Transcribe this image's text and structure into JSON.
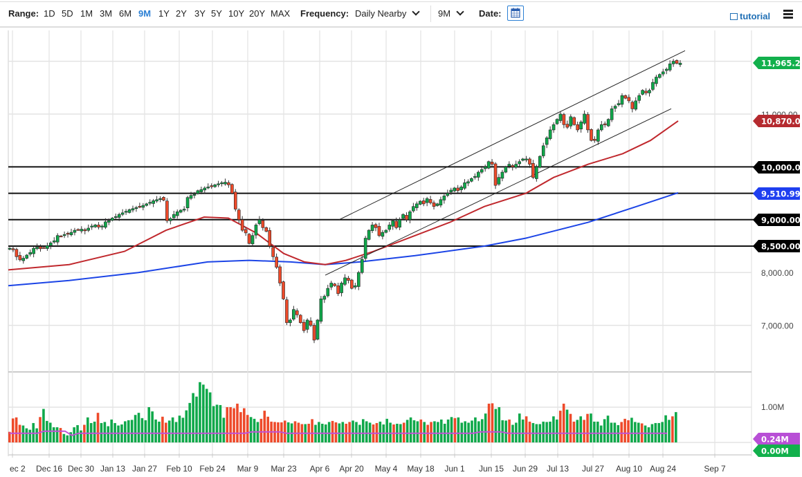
{
  "toolbar": {
    "range_label": "Range:",
    "ranges": [
      "1D",
      "5D",
      "1M",
      "3M",
      "6M",
      "9M",
      "1Y",
      "2Y",
      "3Y",
      "5Y",
      "10Y",
      "20Y",
      "MAX"
    ],
    "active_range": "9M",
    "frequency_label": "Frequency:",
    "frequency_value": "Daily Nearby",
    "period_value": "9M",
    "date_label": "Date:",
    "tutorial_label": "tutorial",
    "icons": {
      "calendar": "calendar-icon",
      "tutorial": "film-icon",
      "menu": "hamburger-menu-icon",
      "dropdown": "chevron-down-icon"
    }
  },
  "colors": {
    "up": "#0fa84a",
    "down": "#ee4a2a",
    "sma50": "#c0282d",
    "sma200": "#1b44e6",
    "volume_avg": "#c04fd6",
    "grid": "#e3e3e3",
    "last_price_tag": "#12b04c",
    "sma50_tag": "#b52a2f",
    "sma200_tag": "#1f3ff0",
    "level_tag": "#000000",
    "vol_avg_tag": "#b84fd6",
    "vol_zero_tag": "#12b04c"
  },
  "chart_data": {
    "type": "candlestick",
    "title": "",
    "xlabel": "",
    "ylabel": "",
    "ylim": [
      6500,
      12200
    ],
    "price_axis_ticks": [
      "11,000.00",
      "8,000.00",
      "7,000.00"
    ],
    "price_axis_tick_values": [
      11000,
      8000,
      7000
    ],
    "grid": true,
    "date_ticks": [
      "ec 2",
      "Dec 16",
      "Dec 30",
      "Jan 13",
      "Jan 27",
      "Feb 10",
      "Feb 24",
      "Mar 9",
      "Mar 23",
      "Apr 6",
      "Apr 20",
      "May 4",
      "May 18",
      "Jun 1",
      "Jun 15",
      "Jun 29",
      "Jul 13",
      "Jul 27",
      "Aug 10",
      "Aug 24",
      "Sep 7"
    ],
    "last_price": "11,965.25",
    "sma50_value": "10,870.07",
    "sma200_value": "9,510.99",
    "horizontal_levels": [
      {
        "value": 10000,
        "label": "10,000.00"
      },
      {
        "value": 9500,
        "label": "9,500.00"
      },
      {
        "value": 9000,
        "label": "9,000.00"
      },
      {
        "value": 8500,
        "label": "8,500.00"
      }
    ],
    "channel": {
      "upper": [
        [
          490,
          9000
        ],
        [
          990,
          12200
        ]
      ],
      "lower": [
        [
          470,
          7950
        ],
        [
          970,
          11100
        ]
      ]
    },
    "closes": [
      8460,
      8430,
      8300,
      8240,
      8270,
      8330,
      8380,
      8460,
      8480,
      8450,
      8470,
      8510,
      8560,
      8600,
      8700,
      8690,
      8720,
      8730,
      8760,
      8800,
      8810,
      8820,
      8790,
      8840,
      8880,
      8900,
      8860,
      8880,
      8960,
      8980,
      9030,
      9060,
      9100,
      9130,
      9160,
      9190,
      9210,
      9230,
      9250,
      9270,
      9300,
      9330,
      9360,
      9380,
      9400,
      9370,
      8980,
      9020,
      9100,
      9150,
      9180,
      9200,
      9420,
      9460,
      9480,
      9550,
      9570,
      9600,
      9620,
      9640,
      9660,
      9680,
      9700,
      9710,
      9660,
      9500,
      9200,
      9000,
      8800,
      8750,
      8550,
      8700,
      8900,
      9000,
      8850,
      8780,
      8500,
      8300,
      8100,
      7800,
      7500,
      7050,
      7100,
      7300,
      7200,
      7050,
      6900,
      7100,
      7000,
      6720,
      7100,
      7500,
      7550,
      7700,
      7800,
      7750,
      7600,
      7800,
      7900,
      7850,
      7700,
      7750,
      8000,
      8250,
      8650,
      8800,
      8900,
      8850,
      8700,
      8760,
      8800,
      8900,
      8980,
      8850,
      9000,
      9100,
      9000,
      9150,
      9250,
      9300,
      9350,
      9300,
      9400,
      9320,
      9250,
      9300,
      9380,
      9450,
      9500,
      9560,
      9600,
      9550,
      9620,
      9700,
      9720,
      9780,
      9820,
      9900,
      9950,
      10000,
      10100,
      10050,
      9650,
      9800,
      9900,
      10000,
      10050,
      10000,
      10050,
      10100,
      10150,
      10150,
      10050,
      9800,
      10000,
      10200,
      10400,
      10550,
      10700,
      10800,
      10900,
      11000,
      10800,
      10750,
      10950,
      10800,
      10700,
      10850,
      11000,
      10700,
      10500,
      10500,
      10700,
      10800,
      10800,
      10900,
      11100,
      11150,
      11200,
      11350,
      11300,
      11250,
      11100,
      11250,
      11350,
      11450,
      11400,
      11450,
      11600,
      11700,
      11750,
      11800,
      11850,
      11950,
      12000,
      11960,
      11965
    ],
    "sma50": {
      "start": [
        12,
        8050
      ],
      "points": [
        [
          12,
          8050
        ],
        [
          100,
          8150
        ],
        [
          180,
          8400
        ],
        [
          240,
          8800
        ],
        [
          295,
          9050
        ],
        [
          330,
          9030
        ],
        [
          370,
          8750
        ],
        [
          410,
          8360
        ],
        [
          440,
          8200
        ],
        [
          470,
          8150
        ],
        [
          500,
          8230
        ],
        [
          540,
          8400
        ],
        [
          600,
          8700
        ],
        [
          650,
          8950
        ],
        [
          700,
          9250
        ],
        [
          760,
          9500
        ],
        [
          800,
          9800
        ],
        [
          850,
          10050
        ],
        [
          900,
          10250
        ],
        [
          940,
          10500
        ],
        [
          980,
          10870
        ]
      ]
    },
    "sma200": {
      "points": [
        [
          12,
          7750
        ],
        [
          100,
          7850
        ],
        [
          200,
          8000
        ],
        [
          300,
          8200
        ],
        [
          360,
          8230
        ],
        [
          420,
          8200
        ],
        [
          470,
          8150
        ],
        [
          520,
          8200
        ],
        [
          600,
          8320
        ],
        [
          700,
          8500
        ],
        [
          760,
          8650
        ],
        [
          850,
          8950
        ],
        [
          920,
          9250
        ],
        [
          980,
          9510
        ]
      ]
    },
    "volume": {
      "axis_ticks": [
        "1.00M"
      ],
      "avg_label": "0.24M",
      "zero_label": "0.00M",
      "bars": [
        0.3,
        0.68,
        0.71,
        0.5,
        0.48,
        0.4,
        0.36,
        0.55,
        0.4,
        0.72,
        0.95,
        0.61,
        0.56,
        0.43,
        0.43,
        0.41,
        0.24,
        0.2,
        0.29,
        0.43,
        0.49,
        0.34,
        0.5,
        0.71,
        0.55,
        0.59,
        0.84,
        0.55,
        0.58,
        0.46,
        0.65,
        0.55,
        0.48,
        0.51,
        0.6,
        0.63,
        0.64,
        0.78,
        0.84,
        0.69,
        0.63,
        1.0,
        0.88,
        0.65,
        0.59,
        0.73,
        0.56,
        0.62,
        0.71,
        0.58,
        0.76,
        0.7,
        0.91,
        1.12,
        1.4,
        1.3,
        1.71,
        1.64,
        1.52,
        1.42,
        1.03,
        1.07,
        1.06,
        0.7,
        1.0,
        1.0,
        0.97,
        1.1,
        0.86,
        0.97,
        0.78,
        0.72,
        0.67,
        0.58,
        0.67,
        0.9,
        0.73,
        0.59,
        0.58,
        0.57,
        0.57,
        0.62,
        0.57,
        0.54,
        0.6,
        0.56,
        0.52,
        0.52,
        0.53,
        0.66,
        0.5,
        0.58,
        0.53,
        0.51,
        0.58,
        0.61,
        0.57,
        0.54,
        0.58,
        0.53,
        0.58,
        0.62,
        0.58,
        0.5,
        0.66,
        0.6,
        0.56,
        0.51,
        0.55,
        0.59,
        0.51,
        0.67,
        0.56,
        0.51,
        0.53,
        0.52,
        0.56,
        0.64,
        0.71,
        0.63,
        0.6,
        0.65,
        0.58,
        0.5,
        0.58,
        0.6,
        0.58,
        0.65,
        0.53,
        0.65,
        0.72,
        0.69,
        0.71,
        0.56,
        0.6,
        0.56,
        0.62,
        0.71,
        0.6,
        0.66,
        0.82,
        1.1,
        1.11,
        0.95,
        1.0,
        0.63,
        0.62,
        0.65,
        0.5,
        0.56,
        0.82,
        0.65,
        0.74,
        0.59,
        0.55,
        0.52,
        0.52,
        0.59,
        0.58,
        0.59,
        0.74,
        0.65,
        0.9,
        1.1,
        0.93,
        0.81,
        0.59,
        0.64,
        0.74,
        0.64,
        0.81,
        0.82,
        0.59,
        0.59,
        0.48,
        0.66,
        0.76,
        0.56,
        0.56,
        0.49,
        0.58,
        0.67,
        0.63,
        0.7,
        0.58,
        0.56,
        0.54,
        0.48,
        0.43,
        0.52,
        0.55,
        0.55,
        0.58,
        0.77,
        0.64,
        0.74,
        0.86
      ]
    }
  }
}
